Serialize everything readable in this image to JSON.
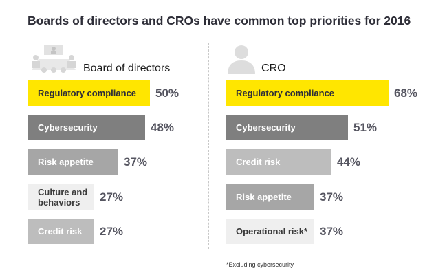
{
  "title": "Boards of directors and CROs have common top priorities for 2016",
  "footnote": "*Excluding cybersecurity",
  "colors": {
    "yellow": "#ffe600",
    "dark_gray": "#7f7f7f",
    "mid_gray": "#a6a6a6",
    "light_gray": "#bdbdbd",
    "pale_gray": "#efefef",
    "title_color": "#2e2e38",
    "pct_color": "#555560"
  },
  "chart_data": [
    {
      "type": "bar",
      "orientation": "horizontal",
      "title": "Board of directors",
      "icon": "boardroom-meeting-icon",
      "unit": "%",
      "categories": [
        "Regulatory compliance",
        "Cybersecurity",
        "Risk appetite",
        "Culture and behaviors",
        "Credit risk"
      ],
      "values": [
        50,
        48,
        37,
        27,
        27
      ],
      "value_labels": [
        "50%",
        "48%",
        "37%",
        "27%",
        "27%"
      ],
      "bar_colors": [
        "#ffe600",
        "#7f7f7f",
        "#a6a6a6",
        "#efefef",
        "#bdbdbd"
      ],
      "label_colors": [
        "#2e2e38",
        "#ffffff",
        "#ffffff",
        "#3a3a3a",
        "#ffffff"
      ],
      "xlim": [
        0,
        100
      ],
      "grid": false,
      "legend": "none"
    },
    {
      "type": "bar",
      "orientation": "horizontal",
      "title": "CRO",
      "icon": "person-silhouette-icon",
      "unit": "%",
      "categories": [
        "Regulatory compliance",
        "Cybersecurity",
        "Credit risk",
        "Risk appetite",
        "Operational risk*"
      ],
      "values": [
        68,
        51,
        44,
        37,
        37
      ],
      "value_labels": [
        "68%",
        "51%",
        "44%",
        "37%",
        "37%"
      ],
      "bar_colors": [
        "#ffe600",
        "#7f7f7f",
        "#bdbdbd",
        "#a6a6a6",
        "#efefef"
      ],
      "label_colors": [
        "#2e2e38",
        "#ffffff",
        "#ffffff",
        "#ffffff",
        "#3a3a3a"
      ],
      "xlim": [
        0,
        100
      ],
      "grid": false,
      "legend": "none"
    }
  ]
}
